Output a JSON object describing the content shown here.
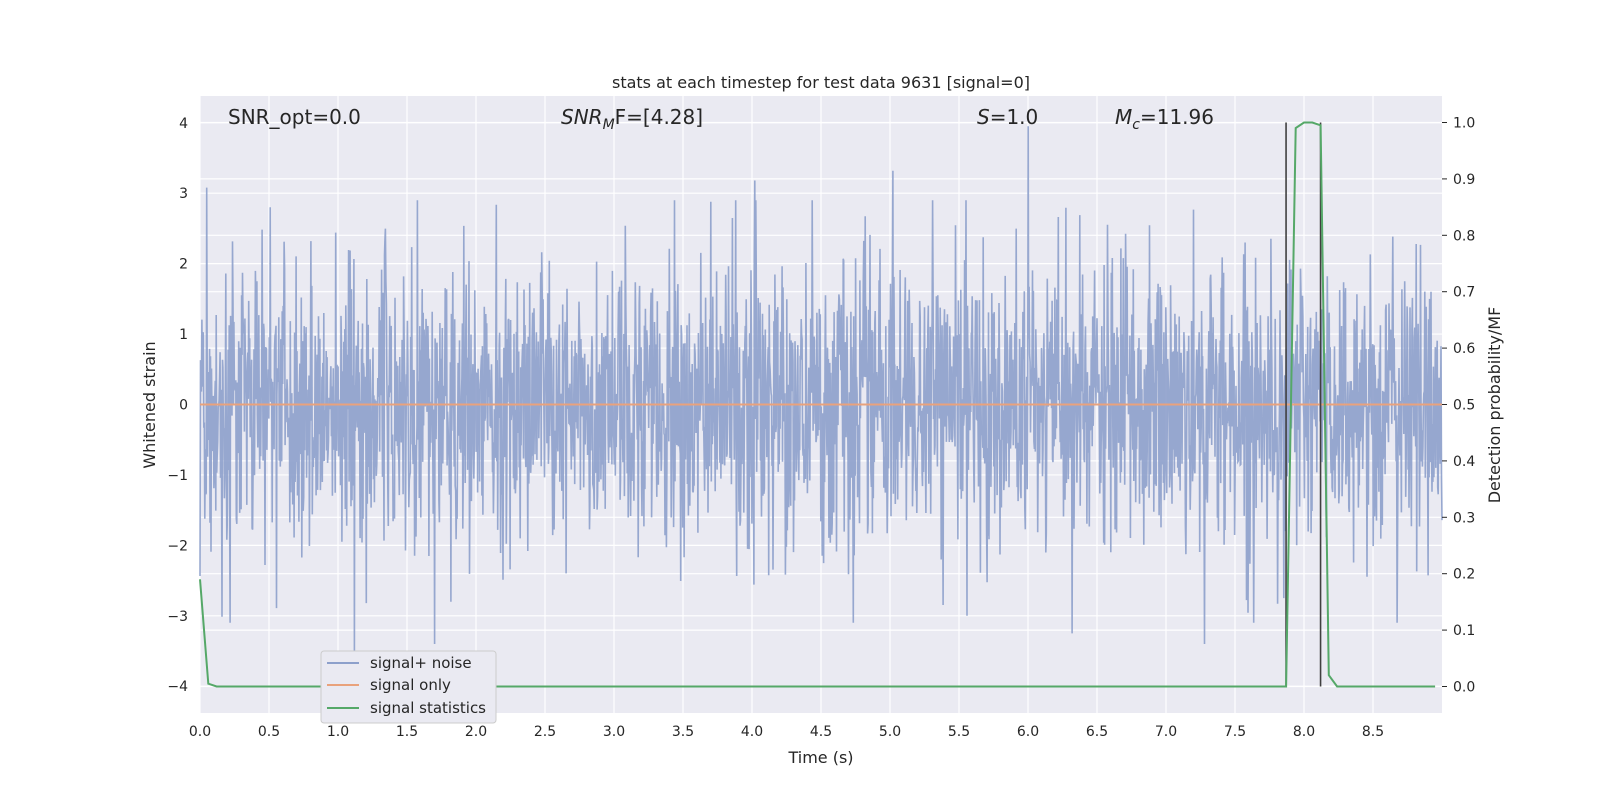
{
  "chart_data": {
    "type": "line",
    "title": "stats at each timestep for test data 9631 [signal=0]",
    "xlabel": "Time (s)",
    "ylabel": "Whitened strain",
    "y2label": "Detection probability/MF",
    "xlim": [
      0.0,
      9.0
    ],
    "ylim": [
      -4.38,
      4.38
    ],
    "y2lim": [
      -0.047,
      1.047
    ],
    "xticks": [
      "0.0",
      "0.5",
      "1.0",
      "1.5",
      "2.0",
      "2.5",
      "3.0",
      "3.5",
      "4.0",
      "4.5",
      "5.0",
      "5.5",
      "6.0",
      "6.5",
      "7.0",
      "7.5",
      "8.0",
      "8.5"
    ],
    "yticks": [
      "4",
      "3",
      "2",
      "1",
      "0",
      "−1",
      "−2",
      "−3",
      "−4"
    ],
    "y2ticks": [
      "1.0",
      "0.9",
      "0.8",
      "0.7",
      "0.6",
      "0.5",
      "0.4",
      "0.3",
      "0.2",
      "0.1",
      "0.0"
    ],
    "grid": true,
    "legend_position": "lower-left",
    "annotations": {
      "snr_opt": "SNR_opt=0.0",
      "snr_mf_sym": "SNR",
      "snr_mf_sub": "M",
      "snr_mf_rest": "F=[4.28]",
      "s_sym": "S",
      "s_rest": "=1.0",
      "mc_sym": "M",
      "mc_sub": "c",
      "mc_rest": "=11.96"
    },
    "series": [
      {
        "name": "signal+ noise",
        "axis": "left",
        "color": "#8da0cb",
        "description_values": "whitened noise, amplitude roughly within [-3.5, 4.0]",
        "peaks": [
          [
            0.05,
            3.08
          ],
          [
            4.02,
            3.18
          ],
          [
            5.02,
            3.32
          ],
          [
            6.0,
            3.95
          ],
          [
            1.12,
            -3.6
          ],
          [
            1.7,
            -3.4
          ],
          [
            7.28,
            -3.4
          ],
          [
            6.32,
            -3.25
          ]
        ]
      },
      {
        "name": "signal only",
        "axis": "left",
        "color": "#e9a27c",
        "x": [
          0.0,
          9.0
        ],
        "y": [
          0.0,
          0.0
        ]
      },
      {
        "name": "signal statistics",
        "axis": "right",
        "color": "#55a868",
        "x": [
          0.0,
          0.06,
          0.12,
          7.87,
          7.94,
          8.0,
          8.06,
          8.12,
          8.18,
          8.24,
          8.95
        ],
        "y": [
          0.19,
          0.005,
          0.0,
          0.0,
          0.99,
          1.0,
          1.0,
          0.995,
          0.02,
          0.0,
          0.0
        ]
      }
    ],
    "vertical_markers": {
      "color": "#404040",
      "x": [
        7.87,
        8.12
      ],
      "y2": [
        [
          0.0,
          1.0
        ],
        [
          0.0,
          1.0
        ]
      ]
    }
  }
}
